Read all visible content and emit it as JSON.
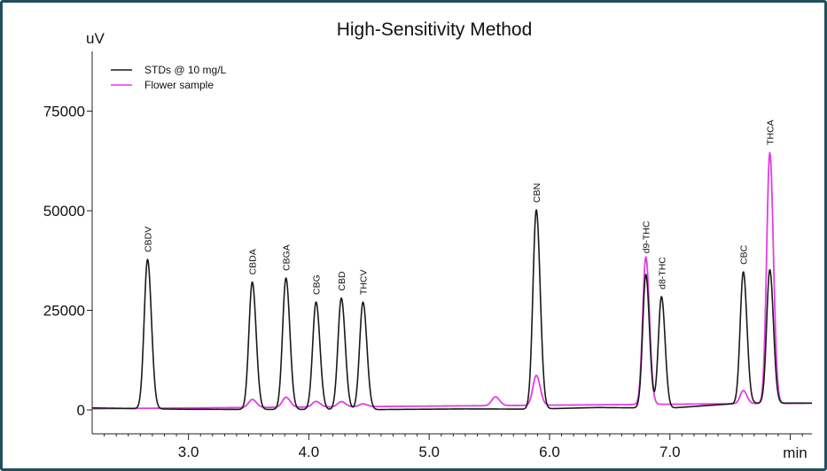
{
  "chart_data": {
    "type": "line",
    "title": "High-Sensitivity Method",
    "ylabel": "uV",
    "xlabel": "min",
    "xlim": [
      2.2,
      8.18
    ],
    "ylim": [
      -6000,
      90000
    ],
    "xticks": [
      "3.0",
      "4.0",
      "5.0",
      "6.0",
      "7.0"
    ],
    "xtick_values": [
      3.0,
      4.0,
      5.0,
      6.0,
      7.0
    ],
    "yticks": [
      "0",
      "25000",
      "50000",
      "75000"
    ],
    "ytick_values": [
      0,
      25000,
      50000,
      75000
    ],
    "grid": false,
    "legend_position": "top-left",
    "series": [
      {
        "name": "STDs @ 10 mg/L",
        "color": "#1a1a1a",
        "baseline": [
          [
            2.2,
            500
          ],
          [
            3.0,
            150
          ],
          [
            4.5,
            80
          ],
          [
            5.3,
            250
          ],
          [
            5.85,
            200
          ],
          [
            6.4,
            600
          ],
          [
            7.0,
            450
          ],
          [
            7.6,
            1700
          ],
          [
            8.18,
            1700
          ]
        ],
        "peaks": [
          {
            "label": "CBDV",
            "rt": 2.66,
            "height": 37500,
            "width": 0.028
          },
          {
            "label": "CBDA",
            "rt": 3.53,
            "height": 32000,
            "width": 0.028
          },
          {
            "label": "CBGA",
            "rt": 3.81,
            "height": 33000,
            "width": 0.028
          },
          {
            "label": "CBG",
            "rt": 4.06,
            "height": 27000,
            "width": 0.028
          },
          {
            "label": "CBD",
            "rt": 4.27,
            "height": 28000,
            "width": 0.028
          },
          {
            "label": "THCV",
            "rt": 4.45,
            "height": 27000,
            "width": 0.028
          },
          {
            "label": "CBN",
            "rt": 5.89,
            "height": 50000,
            "width": 0.028
          },
          {
            "label": "d9-THC",
            "rt": 6.8,
            "height": 33500,
            "width": 0.026
          },
          {
            "label": "d8-THC",
            "rt": 6.93,
            "height": 28000,
            "width": 0.026
          },
          {
            "label": "CBC",
            "rt": 7.61,
            "height": 33000,
            "width": 0.026
          },
          {
            "label": "THCA",
            "rt": 7.83,
            "height": 33500,
            "width": 0.026
          }
        ]
      },
      {
        "name": "Flower sample",
        "color": "#e23ee2",
        "baseline": [
          [
            2.2,
            300
          ],
          [
            8.18,
            1700
          ]
        ],
        "peaks": [
          {
            "rt": 3.53,
            "height": 2000,
            "width": 0.03
          },
          {
            "rt": 3.81,
            "height": 2500,
            "width": 0.03
          },
          {
            "rt": 4.06,
            "height": 1400,
            "width": 0.03
          },
          {
            "rt": 4.27,
            "height": 1300,
            "width": 0.03
          },
          {
            "rt": 4.45,
            "height": 700,
            "width": 0.03
          },
          {
            "rt": 5.55,
            "height": 2200,
            "width": 0.03
          },
          {
            "rt": 5.89,
            "height": 7500,
            "width": 0.028
          },
          {
            "rt": 6.8,
            "height": 37000,
            "width": 0.026
          },
          {
            "rt": 7.61,
            "height": 3300,
            "width": 0.026
          },
          {
            "rt": 7.83,
            "height": 63000,
            "width": 0.026
          }
        ]
      }
    ]
  }
}
